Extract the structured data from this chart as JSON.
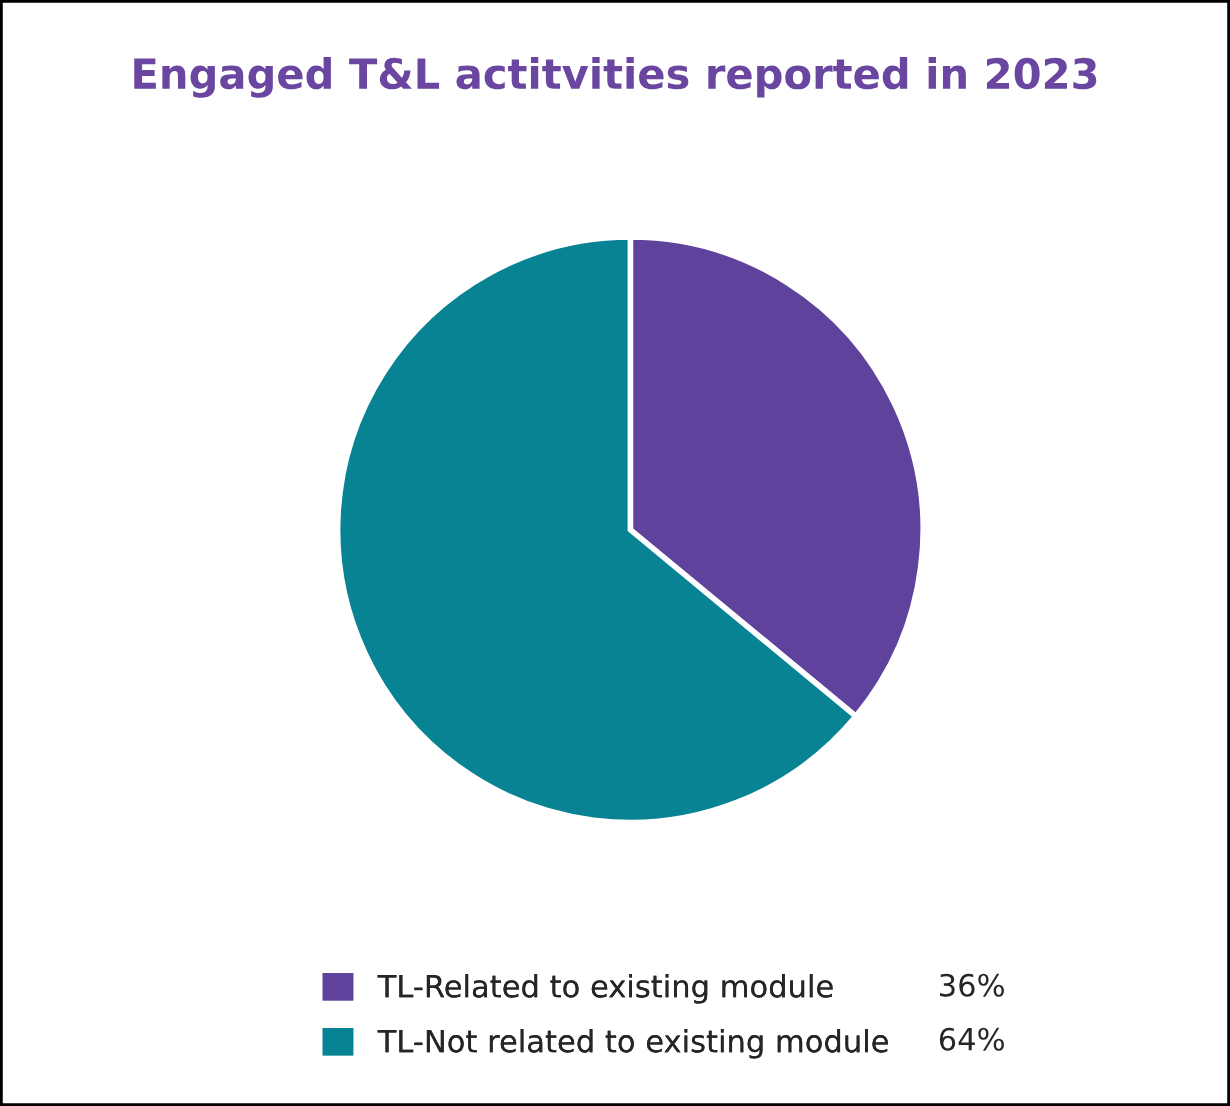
{
  "chart_data": {
    "type": "pie",
    "title": "Engaged T&L actitvities reported in 2023",
    "categories": [
      "TL-Related to existing module",
      "TL-Not related to existing module"
    ],
    "values": [
      36,
      64
    ],
    "colors": [
      "#5f429b",
      "#088393"
    ],
    "value_labels": [
      "36%",
      "64%"
    ],
    "legend": "bottom"
  }
}
